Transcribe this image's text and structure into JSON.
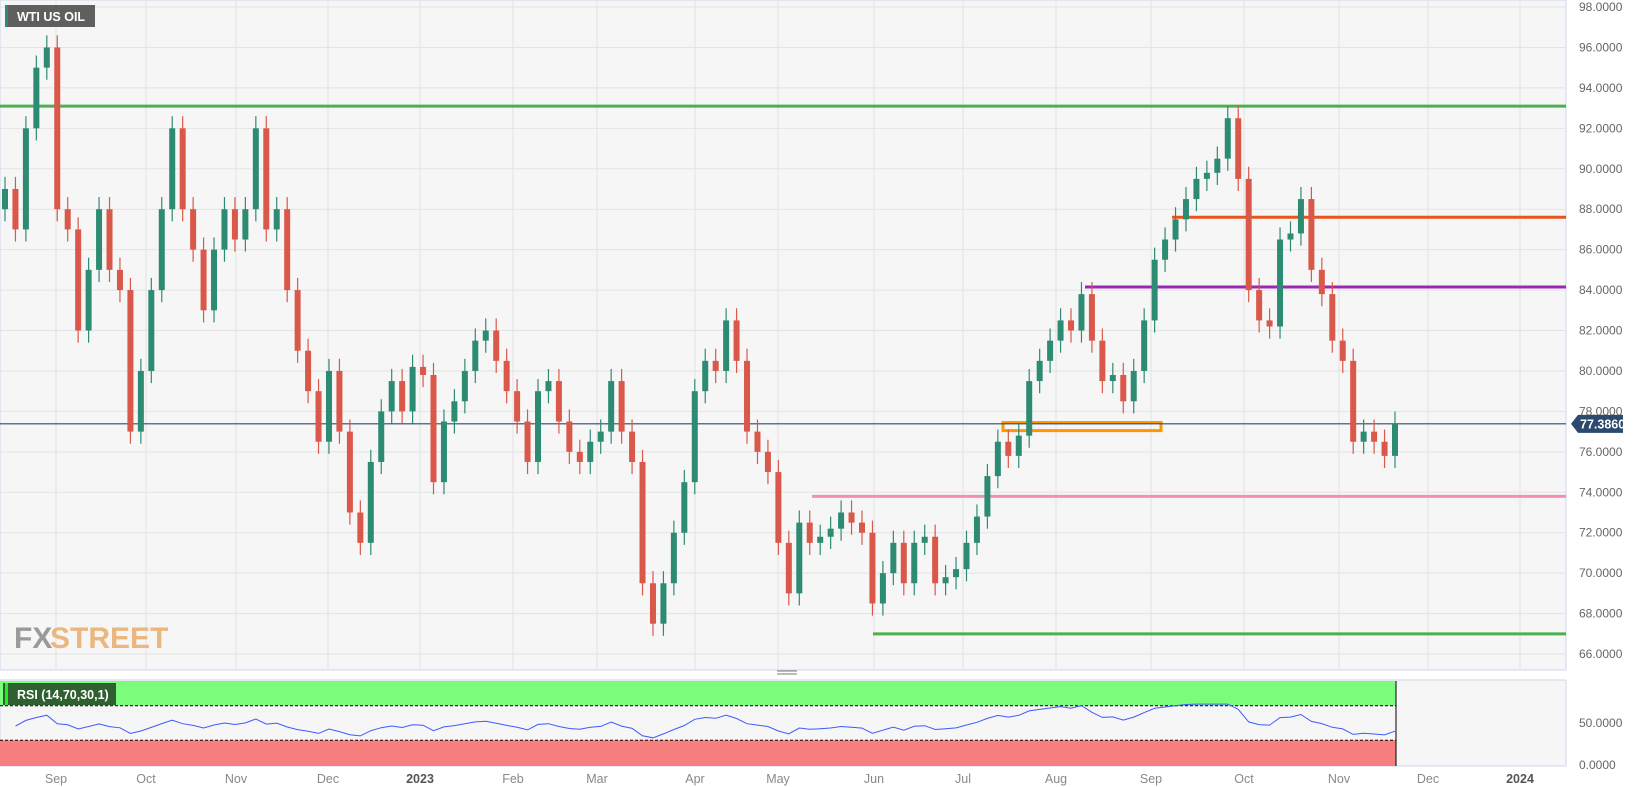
{
  "instrument": {
    "title": "WTI US OIL"
  },
  "watermark": {
    "fx": "FX",
    "street": "STREET"
  },
  "colors": {
    "up": "#2e8b73",
    "down": "#d9584a",
    "last_price": "#2c4a6e",
    "rsi_line": "#3b5bff",
    "overbought": "#7cfc7c",
    "oversold": "#f87f7f"
  },
  "chart_data": {
    "type": "candlestick",
    "title": "WTI US OIL",
    "price_axis": {
      "ylim": [
        65,
        98
      ],
      "ticks": [
        "98.0000",
        "96.0000",
        "94.0000",
        "92.0000",
        "90.0000",
        "88.0000",
        "86.0000",
        "84.0000",
        "82.0000",
        "80.0000",
        "78.0000",
        "76.0000",
        "74.0000",
        "72.0000",
        "70.0000",
        "68.0000",
        "66.0000"
      ],
      "position": "right"
    },
    "x_ticks": [
      {
        "label": "Sep",
        "year": false
      },
      {
        "label": "Oct",
        "year": false
      },
      {
        "label": "Nov",
        "year": false
      },
      {
        "label": "Dec",
        "year": false
      },
      {
        "label": "2023",
        "year": true
      },
      {
        "label": "Feb",
        "year": false
      },
      {
        "label": "Mar",
        "year": false
      },
      {
        "label": "Apr",
        "year": false
      },
      {
        "label": "May",
        "year": false
      },
      {
        "label": "Jun",
        "year": false
      },
      {
        "label": "Jul",
        "year": false
      },
      {
        "label": "Aug",
        "year": false
      },
      {
        "label": "Sep",
        "year": false
      },
      {
        "label": "Oct",
        "year": false
      },
      {
        "label": "Nov",
        "year": false
      },
      {
        "label": "Dec",
        "year": false
      },
      {
        "label": "2024",
        "year": true
      }
    ],
    "grid": true,
    "closes": [
      89,
      87,
      92,
      95,
      96,
      88,
      87,
      82,
      85,
      88,
      85,
      84,
      77,
      80,
      84,
      88,
      92,
      88,
      86,
      83,
      86,
      88,
      86.5,
      88,
      92,
      87,
      88,
      84,
      81,
      79,
      76.5,
      80,
      77,
      73,
      71.5,
      75.5,
      78,
      79.5,
      78,
      80.2,
      79.8,
      74.5,
      77.5,
      78.5,
      80,
      81.5,
      82,
      80.5,
      79,
      77.5,
      75.5,
      79,
      79.5,
      77.5,
      76,
      75.5,
      76.5,
      77,
      79.5,
      77,
      75.5,
      69.5,
      67.5,
      69.5,
      72,
      74.5,
      79,
      80.5,
      80,
      82.5,
      80.5,
      77,
      76,
      75,
      71.5,
      69,
      72.5,
      71.5,
      71.8,
      72.2,
      73,
      72.5,
      72,
      68.5,
      70,
      71.5,
      69.5,
      71.5,
      71.8,
      69.5,
      69.8,
      70.2,
      71.5,
      72.8,
      74.8,
      76.5,
      75.8,
      76.8,
      79.5,
      80.5,
      81.5,
      82.5,
      82,
      83.8,
      81.5,
      79.5,
      79.8,
      78.5,
      80,
      82.5,
      85.5,
      86.5,
      87.5,
      88.5,
      89.5,
      89.8,
      90.5,
      92.5,
      89.5,
      84,
      82.5,
      82.2,
      86.5,
      86.8,
      88.5,
      85,
      83.8,
      81.5,
      80.5,
      76.5,
      77,
      76.5,
      75.8,
      77.386
    ],
    "last_price": {
      "value": 77.386,
      "label": "77.3860"
    },
    "levels": [
      {
        "name": "resistance-93",
        "price": 93.1,
        "color": "#4caf50"
      },
      {
        "name": "resistance-87-6",
        "price": 87.6,
        "color": "#e8541a"
      },
      {
        "name": "resistance-84-15",
        "price": 84.15,
        "color": "#9c27b0"
      },
      {
        "name": "support-73-8",
        "price": 73.8,
        "color": "#f48fb1"
      },
      {
        "name": "support-67",
        "price": 67.0,
        "color": "#4caf50"
      }
    ],
    "zone": {
      "name": "orange-zone",
      "low": 77.05,
      "high": 77.45,
      "color": "#ff9800"
    },
    "indicator": {
      "label": "RSI (14,70,30,1)",
      "period": 14,
      "upper": 70,
      "lower": 30,
      "ticks": [
        "50.0000",
        "0.0000"
      ]
    }
  }
}
